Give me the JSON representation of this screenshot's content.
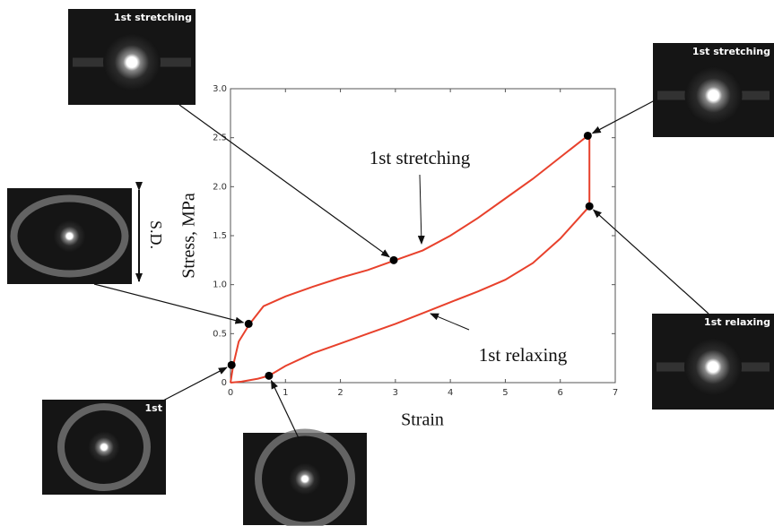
{
  "chart_data": {
    "type": "line",
    "xlabel": "Strain",
    "ylabel": "Stress, MPa",
    "xlim": [
      0,
      7
    ],
    "ylim": [
      0,
      3
    ],
    "xticks": [
      0,
      1,
      2,
      3,
      4,
      5,
      6,
      7
    ],
    "yticks": [
      0,
      0.5,
      {
        "value": 1,
        "label": "1.0"
      },
      1.5,
      {
        "value": 2,
        "label": "2.0"
      },
      2.5,
      {
        "value": 3,
        "label": "3.0"
      }
    ],
    "series": [
      {
        "name": "1st stretching",
        "color": "#e8412c",
        "x": [
          0,
          0.05,
          0.15,
          0.35,
          0.6,
          1,
          1.5,
          2,
          2.5,
          3,
          3.5,
          4,
          4.5,
          5,
          5.5,
          6,
          6.5,
          6.53
        ],
        "values": [
          0,
          0.18,
          0.42,
          0.6,
          0.78,
          0.88,
          0.98,
          1.07,
          1.15,
          1.25,
          1.35,
          1.5,
          1.68,
          1.88,
          2.08,
          2.3,
          2.52,
          2.52
        ]
      },
      {
        "name": "1st relaxing",
        "color": "#e8412c",
        "x": [
          6.53,
          6.53,
          6,
          5.5,
          5,
          4.5,
          4,
          3.5,
          3,
          2.5,
          2,
          1.5,
          1,
          0.7,
          0.5,
          0.2,
          0
        ],
        "values": [
          2.52,
          1.8,
          1.47,
          1.22,
          1.05,
          0.93,
          0.82,
          0.71,
          0.6,
          0.5,
          0.4,
          0.3,
          0.17,
          0.07,
          0.04,
          0.01,
          0
        ]
      }
    ],
    "markers": {
      "x": [
        0.02,
        0.33,
        2.97,
        6.5,
        6.53,
        0.7
      ],
      "values": [
        0.18,
        0.6,
        1.25,
        2.52,
        1.8,
        0.07
      ]
    },
    "insets": [
      {
        "label": "1st stretching"
      },
      {
        "label": "S.D."
      },
      {
        "label": "1st"
      },
      {},
      {
        "label": "1st stretching"
      },
      {
        "label": "1st relaxing"
      }
    ]
  }
}
